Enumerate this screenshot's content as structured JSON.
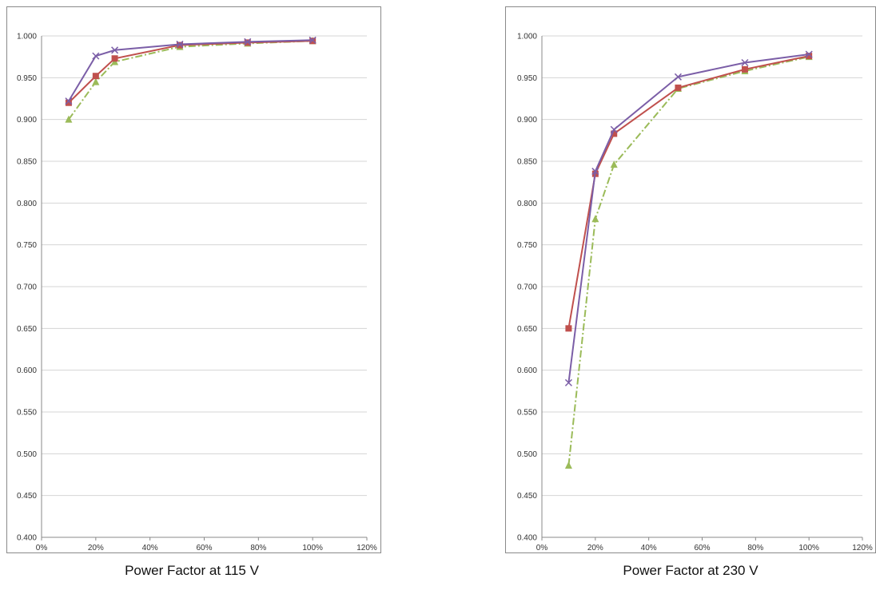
{
  "chart_data": [
    {
      "type": "line",
      "title": "Power Factor at 115 V",
      "xlabel": "",
      "ylabel": "",
      "xlim": [
        0,
        120
      ],
      "ylim": [
        0.4,
        1.0
      ],
      "x_ticks": [
        "0%",
        "20%",
        "40%",
        "60%",
        "80%",
        "100%",
        "120%"
      ],
      "y_ticks": [
        "0.400",
        "0.450",
        "0.500",
        "0.550",
        "0.600",
        "0.650",
        "0.700",
        "0.750",
        "0.800",
        "0.850",
        "0.900",
        "0.950",
        "1.000"
      ],
      "grid": "horizontal",
      "series": [
        {
          "color": "#7b5ea7",
          "marker": "x",
          "dash": "solid",
          "x": [
            10,
            20,
            27,
            51,
            76,
            100
          ],
          "y": [
            0.922,
            0.976,
            0.983,
            0.99,
            0.993,
            0.995
          ]
        },
        {
          "color": "#c0504d",
          "marker": "square",
          "dash": "solid",
          "x": [
            10,
            20,
            27,
            51,
            76,
            100
          ],
          "y": [
            0.92,
            0.952,
            0.973,
            0.989,
            0.992,
            0.994
          ]
        },
        {
          "color": "#9bbb59",
          "marker": "triangle",
          "dash": "dashdot",
          "x": [
            10,
            20,
            27,
            51,
            76,
            100
          ],
          "y": [
            0.9,
            0.945,
            0.969,
            0.987,
            0.991,
            0.994
          ]
        }
      ]
    },
    {
      "type": "line",
      "title": "Power Factor at 230 V",
      "xlabel": "",
      "ylabel": "",
      "xlim": [
        0,
        120
      ],
      "ylim": [
        0.4,
        1.0
      ],
      "x_ticks": [
        "0%",
        "20%",
        "40%",
        "60%",
        "80%",
        "100%",
        "120%"
      ],
      "y_ticks": [
        "0.400",
        "0.450",
        "0.500",
        "0.550",
        "0.600",
        "0.650",
        "0.700",
        "0.750",
        "0.800",
        "0.850",
        "0.900",
        "0.950",
        "1.000"
      ],
      "grid": "horizontal",
      "series": [
        {
          "color": "#7b5ea7",
          "marker": "x",
          "dash": "solid",
          "x": [
            10,
            20,
            27,
            51,
            76,
            100
          ],
          "y": [
            0.585,
            0.838,
            0.888,
            0.951,
            0.968,
            0.978
          ]
        },
        {
          "color": "#c0504d",
          "marker": "square",
          "dash": "solid",
          "x": [
            10,
            20,
            27,
            51,
            76,
            100
          ],
          "y": [
            0.65,
            0.835,
            0.883,
            0.938,
            0.96,
            0.976
          ]
        },
        {
          "color": "#9bbb59",
          "marker": "triangle",
          "dash": "dashdot",
          "x": [
            10,
            20,
            27,
            51,
            76,
            100
          ],
          "y": [
            0.486,
            0.781,
            0.846,
            0.937,
            0.958,
            0.975
          ]
        }
      ]
    }
  ],
  "captions": {
    "left": "Power Factor at 115 V",
    "right": "Power Factor at 230 V"
  }
}
